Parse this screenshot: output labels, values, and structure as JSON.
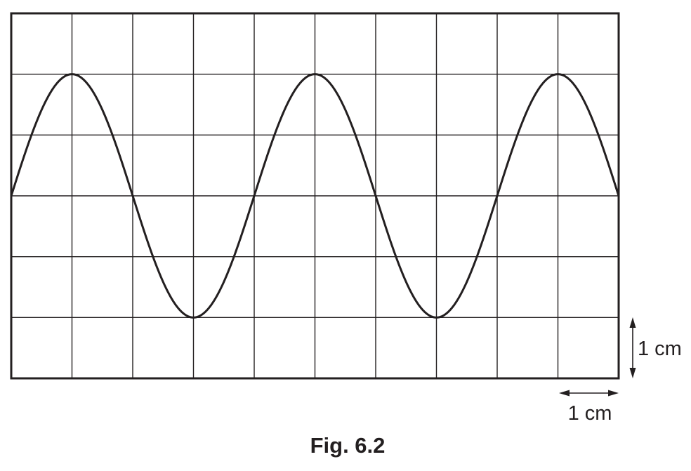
{
  "figure": {
    "caption": "Fig. 6.2",
    "grid": {
      "columns": 10,
      "rows": 6,
      "square_size_label": "1 cm"
    },
    "trace": {
      "shape": "sine",
      "amplitude_squares": 2,
      "wavelength_squares": 4,
      "start_phase": "zero-rising",
      "squares_span": 10
    },
    "scale": {
      "vertical_label": "1 cm",
      "horizontal_label": "1 cm"
    },
    "colors": {
      "ink": "#231f20",
      "background": "#ffffff"
    }
  }
}
